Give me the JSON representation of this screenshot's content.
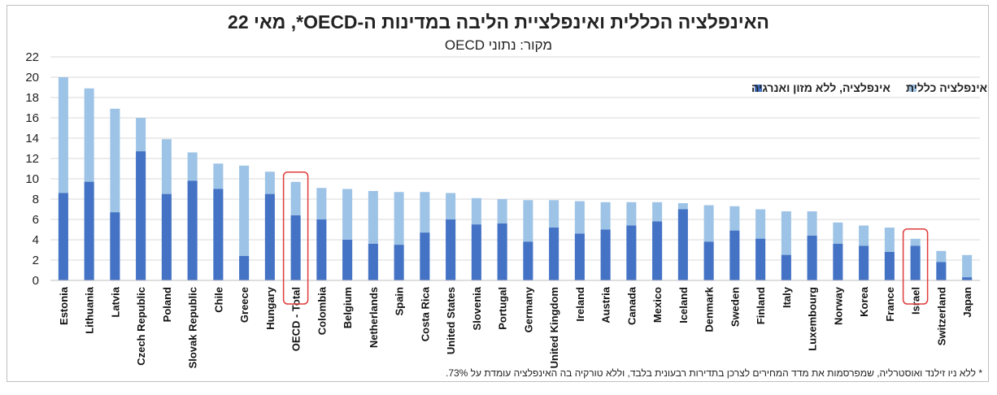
{
  "chart_data": {
    "type": "bar",
    "title": "האינפלציה הכללית ואינפלציית הליבה במדינות ה-OECD*, מאי 22",
    "subtitle": "מקור: נתוני OECD",
    "footnote": "* ללא ניו זילנד ואוסטרליה, שמפרסמות את מדד המחירים לצרכן בתדירות רבעונית בלבד, וללא טורקיה בה האינפלציה עומדת על 73%.",
    "categories": [
      "Estonia",
      "Lithuania",
      "Latvia",
      "Czech Republic",
      "Poland",
      "Slovak Republic",
      "Chile",
      "Greece",
      "Hungary",
      "OECD - Total",
      "Colombia",
      "Belgium",
      "Netherlands",
      "Spain",
      "Costa Rica",
      "United States",
      "Slovenia",
      "Portugal",
      "Germany",
      "United Kingdom",
      "Ireland",
      "Austria",
      "Canada",
      "Mexico",
      "Iceland",
      "Denmark",
      "Sweden",
      "Finland",
      "Italy",
      "Luxembourg",
      "Norway",
      "Korea",
      "France",
      "Israel",
      "Switzerland",
      "Japan"
    ],
    "series": [
      {
        "name": "אינפלציה, ללא מזון ואנרגיה",
        "color": "#4472c4",
        "values": [
          8.6,
          9.7,
          6.7,
          12.7,
          8.5,
          9.8,
          9.0,
          2.4,
          8.5,
          6.4,
          6.0,
          4.0,
          3.6,
          3.5,
          4.7,
          6.0,
          5.5,
          5.6,
          3.8,
          5.2,
          4.6,
          5.0,
          5.4,
          5.8,
          7.0,
          3.8,
          4.9,
          4.1,
          2.5,
          4.4,
          3.6,
          3.4,
          2.8,
          3.4,
          1.8,
          0.3
        ]
      },
      {
        "name": "אינפלציה כללית",
        "color": "#9dc3e6",
        "values": [
          20.0,
          18.9,
          16.9,
          16.0,
          13.9,
          12.6,
          11.5,
          11.3,
          10.7,
          9.7,
          9.1,
          9.0,
          8.8,
          8.7,
          8.7,
          8.6,
          8.1,
          8.0,
          7.9,
          7.9,
          7.8,
          7.7,
          7.7,
          7.7,
          7.6,
          7.4,
          7.3,
          7.0,
          6.8,
          6.8,
          5.7,
          5.4,
          5.2,
          4.1,
          2.9,
          2.5
        ]
      }
    ],
    "highlighted_categories": [
      "OECD - Total",
      "Israel"
    ],
    "highlight_color": "#e03c3c",
    "ylim": [
      0,
      22
    ],
    "yticks": [
      0,
      2,
      4,
      6,
      8,
      10,
      12,
      14,
      16,
      18,
      20,
      22
    ],
    "grid": true,
    "legend_position": "top-right"
  }
}
